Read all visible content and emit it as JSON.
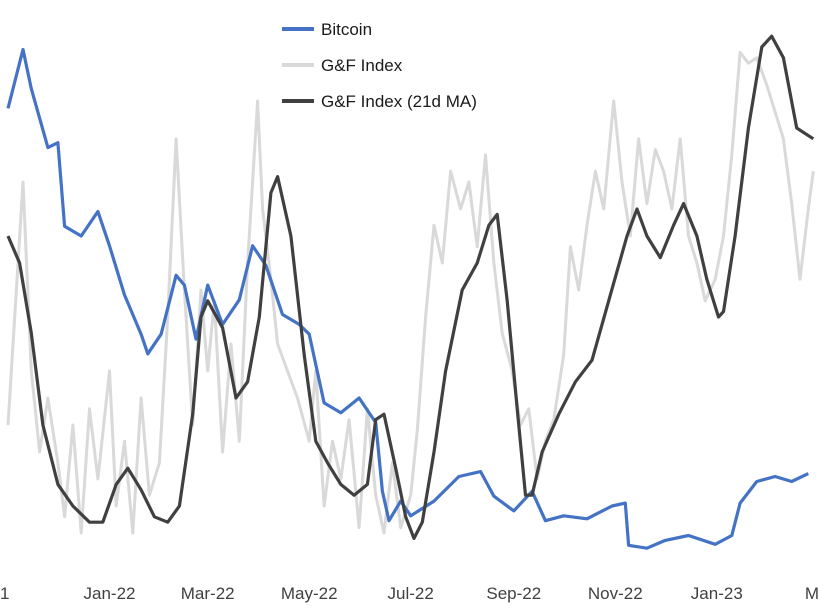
{
  "chart_data": {
    "type": "line",
    "title": "",
    "xlabel": "",
    "ylabel": "",
    "x_ticks": [
      "1",
      "Jan-22",
      "Mar-22",
      "May-22",
      "Jul-22",
      "Sep-22",
      "Nov-22",
      "Jan-23",
      "M"
    ],
    "x_ticks_note_dates": [
      "2021-11-01",
      "2022-01-01",
      "2022-03-01",
      "2022-05-01",
      "2022-07-01",
      "2022-09-01",
      "2022-11-01",
      "2023-01-01",
      "2023-03-01"
    ],
    "x_range": [
      "2021-11-01",
      "2023-03-01"
    ],
    "grid": false,
    "legend": "top-center",
    "series": [
      {
        "name": "Bitcoin",
        "color": "#4472C4",
        "y_range": [
          15000,
          70000
        ],
        "points": [
          [
            "2021-11-01",
            61000
          ],
          [
            "2021-11-10",
            67000
          ],
          [
            "2021-11-15",
            63000
          ],
          [
            "2021-11-25",
            57000
          ],
          [
            "2021-12-01",
            57500
          ],
          [
            "2021-12-05",
            49000
          ],
          [
            "2021-12-15",
            48000
          ],
          [
            "2021-12-25",
            50500
          ],
          [
            "2022-01-01",
            47000
          ],
          [
            "2022-01-10",
            42000
          ],
          [
            "2022-01-20",
            38000
          ],
          [
            "2022-01-24",
            36000
          ],
          [
            "2022-02-01",
            38000
          ],
          [
            "2022-02-10",
            44000
          ],
          [
            "2022-02-15",
            43000
          ],
          [
            "2022-02-22",
            37500
          ],
          [
            "2022-03-01",
            43000
          ],
          [
            "2022-03-10",
            39000
          ],
          [
            "2022-03-20",
            41500
          ],
          [
            "2022-03-28",
            47000
          ],
          [
            "2022-04-05",
            45000
          ],
          [
            "2022-04-15",
            40000
          ],
          [
            "2022-04-25",
            39000
          ],
          [
            "2022-05-01",
            38000
          ],
          [
            "2022-05-10",
            31000
          ],
          [
            "2022-05-20",
            30000
          ],
          [
            "2022-05-31",
            31500
          ],
          [
            "2022-06-10",
            29000
          ],
          [
            "2022-06-14",
            22000
          ],
          [
            "2022-06-18",
            19000
          ],
          [
            "2022-06-25",
            21000
          ],
          [
            "2022-07-01",
            19500
          ],
          [
            "2022-07-15",
            21000
          ],
          [
            "2022-07-30",
            23500
          ],
          [
            "2022-08-12",
            24000
          ],
          [
            "2022-08-20",
            21500
          ],
          [
            "2022-09-01",
            20000
          ],
          [
            "2022-09-12",
            22000
          ],
          [
            "2022-09-20",
            19000
          ],
          [
            "2022-10-01",
            19500
          ],
          [
            "2022-10-15",
            19200
          ],
          [
            "2022-10-30",
            20500
          ],
          [
            "2022-11-07",
            20800
          ],
          [
            "2022-11-09",
            16500
          ],
          [
            "2022-11-20",
            16200
          ],
          [
            "2022-12-01",
            17000
          ],
          [
            "2022-12-15",
            17500
          ],
          [
            "2022-12-31",
            16600
          ],
          [
            "2023-01-10",
            17500
          ],
          [
            "2023-01-15",
            20800
          ],
          [
            "2023-01-25",
            23000
          ],
          [
            "2023-02-05",
            23500
          ],
          [
            "2023-02-15",
            23000
          ],
          [
            "2023-02-25",
            23800
          ]
        ]
      },
      {
        "name": "G&F Index",
        "color": "#D9D9D9",
        "y_range": [
          0,
          100
        ],
        "points": [
          [
            "2021-11-01",
            25
          ],
          [
            "2021-11-05",
            45
          ],
          [
            "2021-11-10",
            70
          ],
          [
            "2021-11-15",
            35
          ],
          [
            "2021-11-20",
            20
          ],
          [
            "2021-11-25",
            30
          ],
          [
            "2021-12-01",
            18
          ],
          [
            "2021-12-05",
            8
          ],
          [
            "2021-12-10",
            25
          ],
          [
            "2021-12-15",
            5
          ],
          [
            "2021-12-20",
            28
          ],
          [
            "2021-12-25",
            15
          ],
          [
            "2022-01-01",
            35
          ],
          [
            "2022-01-05",
            10
          ],
          [
            "2022-01-10",
            22
          ],
          [
            "2022-01-15",
            5
          ],
          [
            "2022-01-20",
            30
          ],
          [
            "2022-01-25",
            12
          ],
          [
            "2022-01-31",
            18
          ],
          [
            "2022-02-05",
            45
          ],
          [
            "2022-02-10",
            78
          ],
          [
            "2022-02-15",
            50
          ],
          [
            "2022-02-20",
            25
          ],
          [
            "2022-02-25",
            50
          ],
          [
            "2022-03-01",
            35
          ],
          [
            "2022-03-05",
            48
          ],
          [
            "2022-03-10",
            20
          ],
          [
            "2022-03-15",
            40
          ],
          [
            "2022-03-20",
            22
          ],
          [
            "2022-03-25",
            55
          ],
          [
            "2022-03-31",
            85
          ],
          [
            "2022-04-03",
            65
          ],
          [
            "2022-04-08",
            52
          ],
          [
            "2022-04-12",
            40
          ],
          [
            "2022-04-18",
            35
          ],
          [
            "2022-04-24",
            30
          ],
          [
            "2022-05-01",
            22
          ],
          [
            "2022-05-05",
            35
          ],
          [
            "2022-05-10",
            10
          ],
          [
            "2022-05-15",
            22
          ],
          [
            "2022-05-20",
            15
          ],
          [
            "2022-05-25",
            26
          ],
          [
            "2022-05-31",
            6
          ],
          [
            "2022-06-05",
            28
          ],
          [
            "2022-06-10",
            12
          ],
          [
            "2022-06-15",
            5
          ],
          [
            "2022-06-20",
            18
          ],
          [
            "2022-06-25",
            6
          ],
          [
            "2022-07-01",
            12
          ],
          [
            "2022-07-05",
            24
          ],
          [
            "2022-07-10",
            45
          ],
          [
            "2022-07-15",
            62
          ],
          [
            "2022-07-20",
            55
          ],
          [
            "2022-07-25",
            72
          ],
          [
            "2022-07-31",
            65
          ],
          [
            "2022-08-05",
            70
          ],
          [
            "2022-08-10",
            58
          ],
          [
            "2022-08-15",
            75
          ],
          [
            "2022-08-20",
            55
          ],
          [
            "2022-08-25",
            42
          ],
          [
            "2022-08-31",
            35
          ],
          [
            "2022-09-05",
            25
          ],
          [
            "2022-09-10",
            28
          ],
          [
            "2022-09-15",
            15
          ],
          [
            "2022-09-20",
            22
          ],
          [
            "2022-09-25",
            26
          ],
          [
            "2022-10-01",
            38
          ],
          [
            "2022-10-05",
            58
          ],
          [
            "2022-10-10",
            50
          ],
          [
            "2022-10-15",
            62
          ],
          [
            "2022-10-20",
            72
          ],
          [
            "2022-10-25",
            65
          ],
          [
            "2022-10-31",
            85
          ],
          [
            "2022-11-05",
            70
          ],
          [
            "2022-11-10",
            60
          ],
          [
            "2022-11-15",
            78
          ],
          [
            "2022-11-20",
            66
          ],
          [
            "2022-11-25",
            76
          ],
          [
            "2022-11-30",
            72
          ],
          [
            "2022-12-05",
            65
          ],
          [
            "2022-12-10",
            78
          ],
          [
            "2022-12-15",
            60
          ],
          [
            "2022-12-20",
            55
          ],
          [
            "2022-12-25",
            48
          ],
          [
            "2022-12-31",
            52
          ],
          [
            "2023-01-05",
            60
          ],
          [
            "2023-01-10",
            75
          ],
          [
            "2023-01-15",
            94
          ],
          [
            "2023-01-20",
            92
          ],
          [
            "2023-01-25",
            93
          ],
          [
            "2023-01-31",
            88
          ],
          [
            "2023-02-05",
            83
          ],
          [
            "2023-02-10",
            78
          ],
          [
            "2023-02-15",
            66
          ],
          [
            "2023-02-20",
            52
          ],
          [
            "2023-02-25",
            65
          ],
          [
            "2023-02-28",
            72
          ]
        ]
      },
      {
        "name": "G&F Index (21d MA)",
        "color": "#404040",
        "y_range": [
          0,
          100
        ],
        "points": [
          [
            "2021-11-01",
            60
          ],
          [
            "2021-11-08",
            55
          ],
          [
            "2021-11-15",
            42
          ],
          [
            "2021-11-22",
            25
          ],
          [
            "2021-12-01",
            14
          ],
          [
            "2021-12-10",
            10
          ],
          [
            "2021-12-20",
            7
          ],
          [
            "2021-12-28",
            7
          ],
          [
            "2022-01-05",
            14
          ],
          [
            "2022-01-12",
            17
          ],
          [
            "2022-01-20",
            13
          ],
          [
            "2022-01-28",
            8
          ],
          [
            "2022-02-05",
            7
          ],
          [
            "2022-02-12",
            10
          ],
          [
            "2022-02-20",
            27
          ],
          [
            "2022-02-25",
            45
          ],
          [
            "2022-03-01",
            48
          ],
          [
            "2022-03-10",
            43
          ],
          [
            "2022-03-18",
            30
          ],
          [
            "2022-03-25",
            33
          ],
          [
            "2022-04-01",
            45
          ],
          [
            "2022-04-08",
            68
          ],
          [
            "2022-04-12",
            71
          ],
          [
            "2022-04-20",
            60
          ],
          [
            "2022-04-28",
            38
          ],
          [
            "2022-05-05",
            22
          ],
          [
            "2022-05-12",
            18
          ],
          [
            "2022-05-20",
            14
          ],
          [
            "2022-05-28",
            12
          ],
          [
            "2022-06-05",
            14
          ],
          [
            "2022-06-10",
            26
          ],
          [
            "2022-06-15",
            27
          ],
          [
            "2022-06-22",
            17
          ],
          [
            "2022-06-28",
            8
          ],
          [
            "2022-07-03",
            4
          ],
          [
            "2022-07-08",
            7
          ],
          [
            "2022-07-15",
            20
          ],
          [
            "2022-07-22",
            35
          ],
          [
            "2022-08-01",
            50
          ],
          [
            "2022-08-10",
            55
          ],
          [
            "2022-08-17",
            62
          ],
          [
            "2022-08-22",
            64
          ],
          [
            "2022-08-28",
            48
          ],
          [
            "2022-09-03",
            28
          ],
          [
            "2022-09-08",
            12
          ],
          [
            "2022-09-12",
            12
          ],
          [
            "2022-09-18",
            20
          ],
          [
            "2022-09-28",
            27
          ],
          [
            "2022-10-08",
            33
          ],
          [
            "2022-10-18",
            37
          ],
          [
            "2022-10-28",
            48
          ],
          [
            "2022-11-08",
            60
          ],
          [
            "2022-11-14",
            65
          ],
          [
            "2022-11-20",
            60
          ],
          [
            "2022-11-28",
            56
          ],
          [
            "2022-12-06",
            62
          ],
          [
            "2022-12-12",
            66
          ],
          [
            "2022-12-20",
            60
          ],
          [
            "2022-12-26",
            52
          ],
          [
            "2023-01-02",
            45
          ],
          [
            "2023-01-05",
            46
          ],
          [
            "2023-01-12",
            60
          ],
          [
            "2023-01-20",
            80
          ],
          [
            "2023-01-28",
            95
          ],
          [
            "2023-02-03",
            97
          ],
          [
            "2023-02-10",
            93
          ],
          [
            "2023-02-18",
            80
          ],
          [
            "2023-02-28",
            78
          ]
        ]
      }
    ]
  }
}
